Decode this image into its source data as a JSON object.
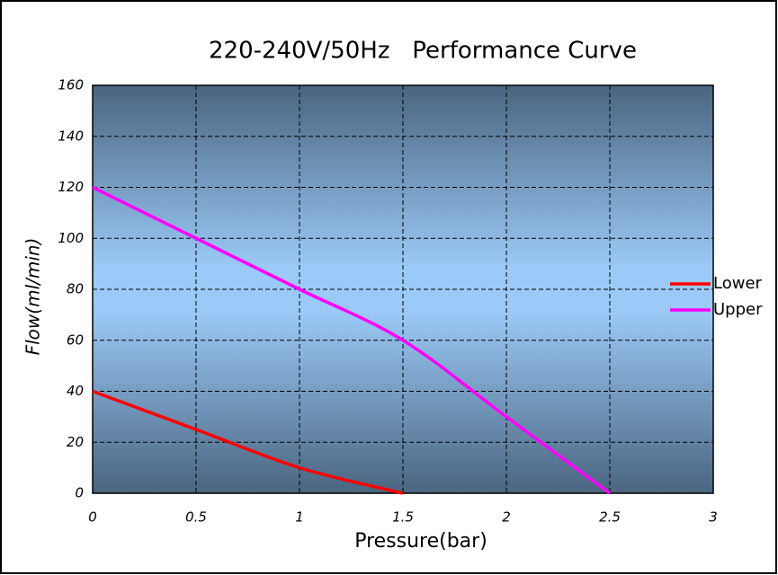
{
  "chart_data": {
    "type": "line",
    "title": "220-240V/50Hz   Performance Curve",
    "x_label": "Pressure(bar)",
    "y_label": "Flow(ml/min)",
    "xlim": [
      0,
      3
    ],
    "xticks": [
      0,
      0.5,
      1,
      1.5,
      2,
      2.5,
      3
    ],
    "ylim": [
      0,
      160
    ],
    "yticks": [
      0,
      20,
      40,
      60,
      80,
      100,
      120,
      140,
      160
    ],
    "grid": true,
    "legend": "right",
    "series": [
      {
        "name": "Lower",
        "color": "#ff0000",
        "x": [
          0,
          0.5,
          1,
          1.5
        ],
        "values": [
          40,
          25,
          10,
          0
        ]
      },
      {
        "name": "Upper",
        "color": "#ff00ff",
        "x": [
          0,
          0.5,
          1,
          1.5,
          2,
          2.5
        ],
        "values": [
          120,
          100,
          80,
          60,
          30,
          0
        ]
      }
    ]
  }
}
